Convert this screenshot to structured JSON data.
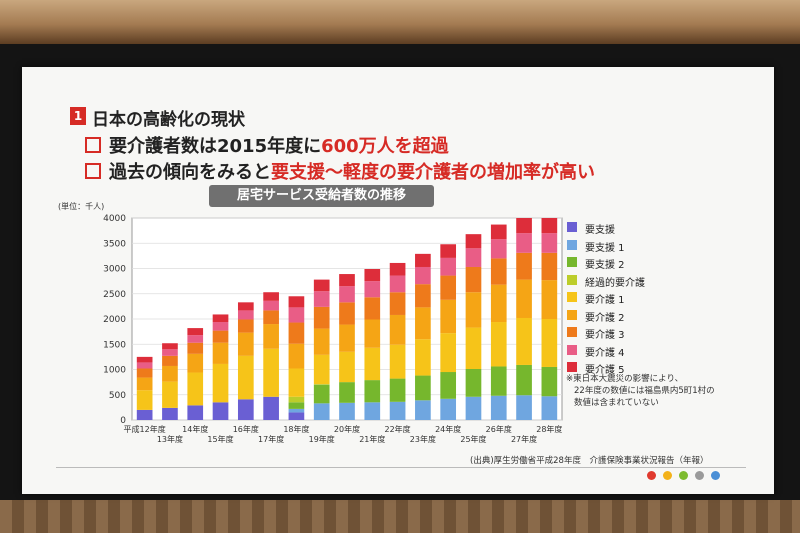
{
  "slide": {
    "badge": "1",
    "heading": "日本の高齢化の現状",
    "bullet1": {
      "pre": "要介護者数は2015年度に",
      "hl": "600万人を超過"
    },
    "bullet2": {
      "pre": "過去の傾向をみると",
      "hl": "要支援～軽度の要介護者の増加率が高い"
    },
    "chart_title": "居宅サービス受給者数の推移",
    "unit": "(単位：千人)",
    "note_lines": [
      "※東日本大震災の影響により、",
      "22年度の数値には福島県内5町1村の",
      "数値は含まれていない"
    ],
    "source": "(出典)厚生労働省平成28年度　介護保険事業状況報告（年報）",
    "dot_colors": [
      "#e03a2e",
      "#f3b21a",
      "#7dbb2f",
      "#9a9a9a",
      "#4a8fd6"
    ]
  },
  "chart_data": {
    "type": "bar",
    "stacked": true,
    "unit": "(単位：千人)",
    "ylim": [
      0,
      4000
    ],
    "yticks": [
      0,
      500,
      1000,
      1500,
      2000,
      2500,
      3000,
      3500,
      4000
    ],
    "categories": [
      "平成12年度",
      "13年度",
      "14年度",
      "15年度",
      "16年度",
      "17年度",
      "18年度",
      "19年度",
      "20年度",
      "21年度",
      "22年度",
      "23年度",
      "24年度",
      "25年度",
      "26年度",
      "27年度",
      "28年度"
    ],
    "series": [
      {
        "name": "要支援",
        "color": "#6a5fd3",
        "values": [
          200,
          240,
          290,
          350,
          410,
          460,
          150,
          0,
          0,
          0,
          0,
          0,
          0,
          0,
          0,
          0,
          0
        ]
      },
      {
        "name": "要支援 1",
        "color": "#6fa6e0",
        "values": [
          0,
          0,
          0,
          0,
          0,
          0,
          70,
          330,
          340,
          350,
          360,
          390,
          420,
          460,
          480,
          490,
          470
        ]
      },
      {
        "name": "要支援 2",
        "color": "#76b72d",
        "values": [
          0,
          0,
          0,
          0,
          0,
          0,
          130,
          370,
          410,
          440,
          460,
          490,
          530,
          550,
          580,
          600,
          580
        ]
      },
      {
        "name": "経過的要介護",
        "color": "#bccd2a",
        "values": [
          0,
          0,
          0,
          0,
          0,
          0,
          110,
          10,
          0,
          0,
          0,
          0,
          0,
          0,
          0,
          0,
          0
        ]
      },
      {
        "name": "要介護 1",
        "color": "#f6c419",
        "values": [
          390,
          520,
          650,
          760,
          860,
          950,
          560,
          580,
          600,
          640,
          670,
          720,
          770,
          820,
          880,
          930,
          950
        ]
      },
      {
        "name": "要介護 2",
        "color": "#f5a515",
        "values": [
          250,
          310,
          370,
          420,
          460,
          490,
          490,
          520,
          540,
          560,
          590,
          630,
          660,
          700,
          740,
          760,
          770
        ]
      },
      {
        "name": "要介護 3",
        "color": "#ee7a1b",
        "values": [
          180,
          200,
          220,
          240,
          260,
          270,
          420,
          430,
          440,
          440,
          450,
          460,
          480,
          500,
          520,
          530,
          540
        ]
      },
      {
        "name": "要介護 4",
        "color": "#e95d86",
        "values": [
          120,
          130,
          150,
          170,
          180,
          190,
          300,
          310,
          320,
          320,
          330,
          340,
          350,
          370,
          380,
          390,
          390
        ]
      },
      {
        "name": "要介護 5",
        "color": "#dd2d3a",
        "values": [
          110,
          120,
          140,
          150,
          160,
          170,
          220,
          230,
          240,
          240,
          250,
          260,
          270,
          280,
          290,
          300,
          300
        ]
      }
    ]
  }
}
